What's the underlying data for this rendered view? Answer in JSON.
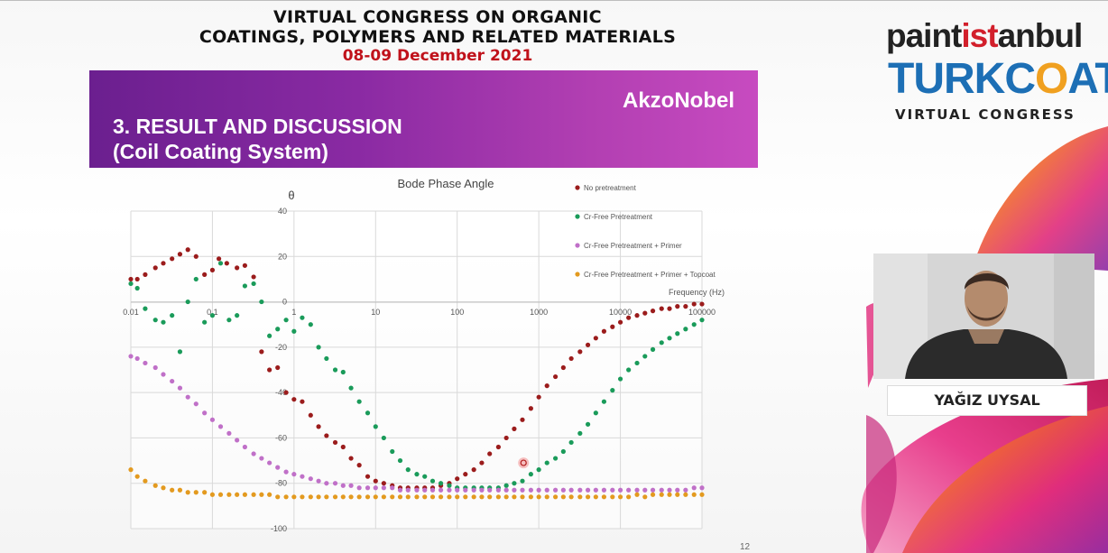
{
  "congress": {
    "line1": "VIRTUAL CONGRESS ON ORGANIC",
    "line2": "COATINGS, POLYMERS AND RELATED MATERIALS",
    "date": "08-09 December 2021"
  },
  "slide": {
    "section_line1": "3. RESULT AND DISCUSSION",
    "section_line2": "(Coil Coating System)",
    "brand": "AkzoNobel",
    "page_number": "12"
  },
  "logo": {
    "paint_part1": "paint",
    "paint_part2": "ist",
    "paint_part3": "anbul",
    "turkcoat_part1": "TURKC",
    "turkcoat_part2": "O",
    "turkcoat_part3": "AT",
    "subtitle": "VIRTUAL CONGRESS"
  },
  "speaker": {
    "name": "YAĞIZ UYSAL"
  },
  "colors": {
    "banner_start": "#6b1f8f",
    "banner_end": "#c74bc0",
    "date_red": "#c0121b",
    "turkcoat_blue": "#1d6fb5",
    "turkcoat_orange": "#f0a020"
  },
  "chart_data": {
    "type": "scatter",
    "title": "Bode Phase Angle",
    "ylabel": "θ",
    "xlabel": "Frequency (Hz)",
    "x_scale": "log",
    "xlim": [
      0.01,
      100000
    ],
    "ylim": [
      -100,
      40
    ],
    "x_ticks": [
      "0.01",
      "0.1",
      "1",
      "10",
      "100",
      "1000",
      "10000",
      "100000"
    ],
    "y_ticks": [
      "40",
      "20",
      "0",
      "-20",
      "-40",
      "-60",
      "-80",
      "-100"
    ],
    "grid": true,
    "legend_position": "top-right",
    "series": [
      {
        "name": "No pretreatment",
        "color": "#9b1c1c",
        "x": [
          0.01,
          0.012,
          0.015,
          0.02,
          0.025,
          0.032,
          0.04,
          0.05,
          0.063,
          0.08,
          0.1,
          0.12,
          0.15,
          0.2,
          0.25,
          0.32,
          0.4,
          0.5,
          0.63,
          0.8,
          1,
          1.26,
          1.6,
          2,
          2.5,
          3.2,
          4,
          5,
          6.3,
          8,
          10,
          12.6,
          16,
          20,
          25,
          32,
          40,
          50,
          63,
          80,
          100,
          126,
          160,
          200,
          250,
          320,
          400,
          500,
          630,
          800,
          1000,
          1260,
          1600,
          2000,
          2500,
          3200,
          4000,
          5000,
          6300,
          8000,
          10000,
          12600,
          16000,
          20000,
          25000,
          32000,
          40000,
          50000,
          63000,
          80000,
          100000
        ],
        "y": [
          10,
          10,
          12,
          15,
          17,
          19,
          21,
          23,
          20,
          12,
          14,
          19,
          17,
          15,
          16,
          11,
          -22,
          -30,
          -29,
          -40,
          -43,
          -44,
          -50,
          -55,
          -59,
          -62,
          -64,
          -69,
          -72,
          -77,
          -79,
          -80,
          -81,
          -82,
          -82,
          -82,
          -82,
          -82,
          -81,
          -80,
          -78,
          -76,
          -74,
          -71,
          -67,
          -64,
          -60,
          -56,
          -52,
          -47,
          -42,
          -37,
          -33,
          -29,
          -25,
          -22,
          -19,
          -16,
          -13,
          -11,
          -9,
          -7,
          -6,
          -5,
          -4,
          -3,
          -3,
          -2,
          -2,
          -1,
          -1
        ]
      },
      {
        "name": "Cr-Free Pretreatment",
        "color": "#1a9b5a",
        "x": [
          0.01,
          0.012,
          0.015,
          0.02,
          0.025,
          0.032,
          0.04,
          0.05,
          0.063,
          0.08,
          0.1,
          0.126,
          0.16,
          0.2,
          0.25,
          0.32,
          0.4,
          0.5,
          0.63,
          0.8,
          1,
          1.26,
          1.6,
          2,
          2.5,
          3.2,
          4,
          5,
          6.3,
          8,
          10,
          12.6,
          16,
          20,
          25,
          32,
          40,
          50,
          63,
          80,
          100,
          126,
          160,
          200,
          250,
          320,
          400,
          500,
          630,
          800,
          1000,
          1260,
          1600,
          2000,
          2500,
          3200,
          4000,
          5000,
          6300,
          8000,
          10000,
          12600,
          16000,
          20000,
          25000,
          32000,
          40000,
          50000,
          63000,
          80000,
          100000
        ],
        "y": [
          8,
          6,
          -3,
          -8,
          -9,
          -6,
          -22,
          0,
          10,
          -9,
          -6,
          17,
          -8,
          -6,
          7,
          8,
          0,
          -15,
          -12,
          -8,
          -13,
          -7,
          -10,
          -20,
          -25,
          -30,
          -31,
          -38,
          -44,
          -49,
          -55,
          -60,
          -66,
          -70,
          -74,
          -76,
          -77,
          -79,
          -80,
          -81,
          -82,
          -82,
          -82,
          -82,
          -82,
          -82,
          -81,
          -80,
          -79,
          -76,
          -74,
          -71,
          -69,
          -66,
          -62,
          -58,
          -54,
          -49,
          -44,
          -39,
          -34,
          -30,
          -27,
          -24,
          -21,
          -18,
          -16,
          -14,
          -12,
          -10,
          -8
        ]
      },
      {
        "name": "Cr-Free Pretreatment + Primer",
        "color": "#c070c8",
        "x": [
          0.01,
          0.012,
          0.015,
          0.02,
          0.025,
          0.032,
          0.04,
          0.05,
          0.063,
          0.08,
          0.1,
          0.126,
          0.16,
          0.2,
          0.25,
          0.32,
          0.4,
          0.5,
          0.63,
          0.8,
          1,
          1.26,
          1.6,
          2,
          2.5,
          3.2,
          4,
          5,
          6.3,
          8,
          10,
          12.6,
          16,
          20,
          25,
          32,
          40,
          50,
          63,
          80,
          100,
          126,
          160,
          200,
          250,
          320,
          400,
          500,
          630,
          800,
          1000,
          1260,
          1600,
          2000,
          2500,
          3200,
          4000,
          5000,
          6300,
          8000,
          10000,
          12600,
          16000,
          20000,
          25000,
          32000,
          40000,
          50000,
          63000,
          80000,
          100000
        ],
        "y": [
          -24,
          -25,
          -27,
          -29,
          -32,
          -35,
          -38,
          -42,
          -45,
          -49,
          -52,
          -55,
          -58,
          -61,
          -64,
          -67,
          -69,
          -71,
          -73,
          -75,
          -76,
          -77,
          -78,
          -79,
          -80,
          -80,
          -81,
          -81,
          -82,
          -82,
          -82,
          -82,
          -82,
          -83,
          -83,
          -83,
          -83,
          -83,
          -83,
          -83,
          -83,
          -83,
          -83,
          -83,
          -83,
          -83,
          -83,
          -83,
          -83,
          -83,
          -83,
          -83,
          -83,
          -83,
          -83,
          -83,
          -83,
          -83,
          -83,
          -83,
          -83,
          -83,
          -83,
          -83,
          -83,
          -83,
          -83,
          -83,
          -83,
          -82,
          -82
        ]
      },
      {
        "name": "Cr-Free Pretreatment + Primer + Topcoat",
        "color": "#e39a1f",
        "x": [
          0.01,
          0.012,
          0.015,
          0.02,
          0.025,
          0.032,
          0.04,
          0.05,
          0.063,
          0.08,
          0.1,
          0.126,
          0.16,
          0.2,
          0.25,
          0.32,
          0.4,
          0.5,
          0.63,
          0.8,
          1,
          1.26,
          1.6,
          2,
          2.5,
          3.2,
          4,
          5,
          6.3,
          8,
          10,
          12.6,
          16,
          20,
          25,
          32,
          40,
          50,
          63,
          80,
          100,
          126,
          160,
          200,
          250,
          320,
          400,
          500,
          630,
          800,
          1000,
          1260,
          1600,
          2000,
          2500,
          3200,
          4000,
          5000,
          6300,
          8000,
          10000,
          12600,
          16000,
          20000,
          25000,
          32000,
          40000,
          50000,
          63000,
          80000,
          100000
        ],
        "y": [
          -74,
          -77,
          -79,
          -81,
          -82,
          -83,
          -83,
          -84,
          -84,
          -84,
          -85,
          -85,
          -85,
          -85,
          -85,
          -85,
          -85,
          -85,
          -86,
          -86,
          -86,
          -86,
          -86,
          -86,
          -86,
          -86,
          -86,
          -86,
          -86,
          -86,
          -86,
          -86,
          -86,
          -86,
          -86,
          -86,
          -86,
          -86,
          -86,
          -86,
          -86,
          -86,
          -86,
          -86,
          -86,
          -86,
          -86,
          -86,
          -86,
          -86,
          -86,
          -86,
          -86,
          -86,
          -86,
          -86,
          -86,
          -86,
          -86,
          -86,
          -86,
          -86,
          -85,
          -86,
          -85,
          -85,
          -85,
          -85,
          -85,
          -85,
          -85
        ]
      }
    ],
    "highlight": {
      "x": 650,
      "y": -71
    }
  }
}
